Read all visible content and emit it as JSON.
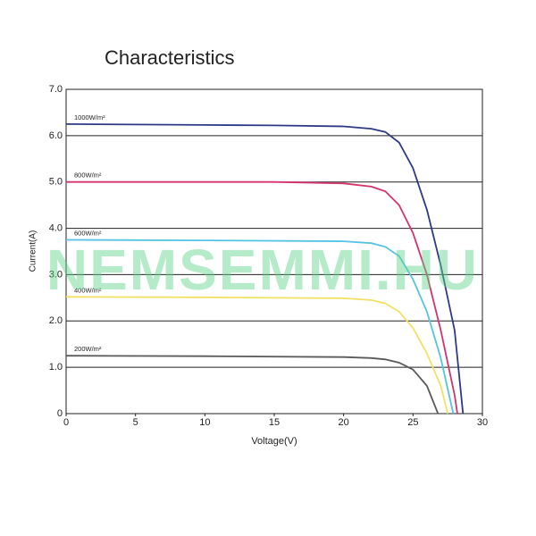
{
  "chart_data": {
    "type": "line",
    "title": "Characteristics",
    "xlabel": "Voltage(V)",
    "ylabel": "Current(A)",
    "watermark": "NEMSEMMI.HU",
    "xlim": [
      0,
      30
    ],
    "xticks": [
      0,
      5,
      10,
      15,
      20,
      25,
      30
    ],
    "ylim": [
      0,
      7
    ],
    "yticks": [
      0,
      {
        "value": 1,
        "label": "1.0"
      },
      {
        "value": 2,
        "label": "2.0"
      },
      {
        "value": 3,
        "label": "3.0"
      },
      {
        "value": 4,
        "label": "4.0"
      },
      {
        "value": 5,
        "label": "5.0"
      },
      {
        "value": 6,
        "label": "6.0"
      },
      {
        "value": 7,
        "label": "7.0"
      }
    ],
    "grid": true,
    "series": [
      {
        "name": "1000W/m²",
        "color": "#2f3a86",
        "x": [
          0,
          5,
          10,
          15,
          20,
          22,
          23,
          24,
          25,
          26,
          27,
          28,
          28.6
        ],
        "values": [
          6.25,
          6.24,
          6.23,
          6.22,
          6.2,
          6.15,
          6.08,
          5.85,
          5.3,
          4.4,
          3.2,
          1.8,
          0
        ]
      },
      {
        "name": "800W/m²",
        "color": "#d4336a",
        "x": [
          0,
          5,
          10,
          15,
          20,
          22,
          23,
          24,
          25,
          26,
          27,
          28,
          28.2
        ],
        "values": [
          5.0,
          5.0,
          5.0,
          5.0,
          4.97,
          4.9,
          4.8,
          4.5,
          3.9,
          3.0,
          1.8,
          0.4,
          0
        ]
      },
      {
        "name": "600W/m²",
        "color": "#55c3e2",
        "x": [
          0,
          10,
          20,
          22,
          23,
          24,
          25,
          26,
          27,
          27.9
        ],
        "values": [
          3.75,
          3.74,
          3.72,
          3.68,
          3.6,
          3.4,
          2.9,
          2.2,
          1.2,
          0
        ]
      },
      {
        "name": "400W/m²",
        "color": "#f1e163",
        "x": [
          0,
          10,
          20,
          22,
          23,
          24,
          25,
          26,
          27,
          27.5
        ],
        "values": [
          2.52,
          2.51,
          2.49,
          2.45,
          2.38,
          2.2,
          1.85,
          1.3,
          0.6,
          0
        ]
      },
      {
        "name": "200W/m²",
        "color": "#5a5a5a",
        "x": [
          0,
          10,
          20,
          22,
          23,
          24,
          25,
          26,
          26.8
        ],
        "values": [
          1.25,
          1.24,
          1.22,
          1.2,
          1.17,
          1.1,
          0.95,
          0.6,
          0
        ]
      }
    ]
  }
}
